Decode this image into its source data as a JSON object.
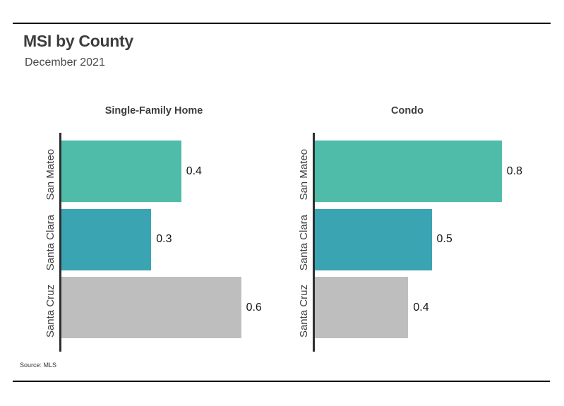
{
  "page": {
    "title": "MSI by County",
    "subtitle": "December 2021",
    "source": "Source: MLS"
  },
  "chart_data": {
    "type": "bar",
    "orientation": "horizontal",
    "title": "MSI by County",
    "subtitle": "December 2021",
    "categories": [
      "San Mateo",
      "Santa Clara",
      "Santa Cruz"
    ],
    "panels": [
      {
        "title": "Single-Family Home",
        "values": [
          0.4,
          0.3,
          0.6
        ],
        "value_labels": [
          "0.4",
          "0.3",
          "0.6"
        ],
        "xlim": [
          0,
          0.7
        ]
      },
      {
        "title": "Condo",
        "values": [
          0.8,
          0.5,
          0.4
        ],
        "value_labels": [
          "0.8",
          "0.5",
          "0.4"
        ],
        "xlim": [
          0,
          1.0
        ]
      }
    ],
    "bar_colors": [
      "#4EBCA9",
      "#3AA4B2",
      "#BEBEBE"
    ],
    "axis_color": "#2e2e2e",
    "grid": false,
    "legend": false,
    "value_labels_shown": true,
    "source": "Source: MLS"
  }
}
